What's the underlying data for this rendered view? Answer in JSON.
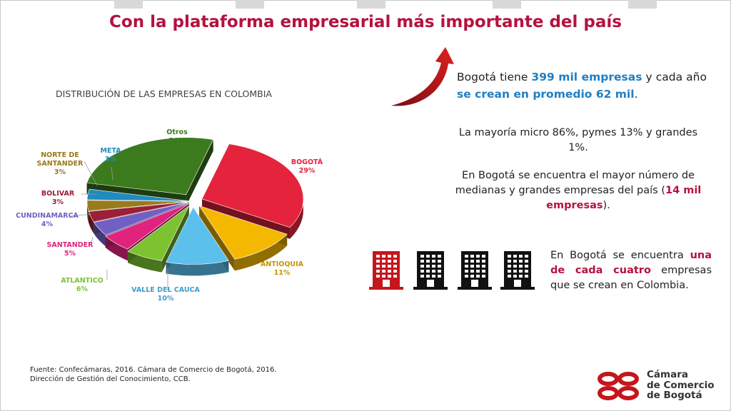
{
  "title": "Con la plataforma empresarial más importante del país",
  "chart_data": {
    "type": "pie",
    "title": "DISTRIBUCIÓN DE LAS EMPRESAS EN COLOMBIA",
    "slices": [
      {
        "name": "BOGOTÁ",
        "value": 29,
        "label": "29%",
        "color": "#e5233d"
      },
      {
        "name": "ANTIOQUIA",
        "value": 11,
        "label": "11%",
        "color": "#f4b800"
      },
      {
        "name": "VALLE DEL CAUCA",
        "value": 10,
        "label": "10%",
        "color": "#5bc0ec"
      },
      {
        "name": "ATLANTICO",
        "value": 6,
        "label": "6%",
        "color": "#7dc331"
      },
      {
        "name": "SANTANDER",
        "value": 5,
        "label": "5%",
        "color": "#e0247e"
      },
      {
        "name": "CUNDINAMARCA",
        "value": 4,
        "label": "4%",
        "color": "#7060c4"
      },
      {
        "name": "BOLIVAR",
        "value": 3,
        "label": "3%",
        "color": "#9b1f36"
      },
      {
        "name": "NORTE DE SANTANDER",
        "value": 3,
        "label": "3%",
        "color": "#9a7a1a"
      },
      {
        "name": "META",
        "value": 3,
        "label": "3%",
        "color": "#1f8bbf"
      },
      {
        "name": "Otros",
        "value": 26,
        "label": "26%",
        "color": "#3c7a1e"
      }
    ]
  },
  "text": {
    "p1_a": "Bogotá tiene ",
    "p1_b": "399 mil empresas",
    "p1_c": " y cada año ",
    "p1_d": "se crean en promedio 62 mil",
    "p1_e": ".",
    "p2": "La mayoría micro 86%, pymes 13% y grandes 1%.",
    "p3_a": "En Bogotá se encuentra el mayor número de medianas y grandes empresas  del país (",
    "p3_b": "14 mil empresas",
    "p3_c": ").",
    "p4_a": "En Bogotá se encuentra ",
    "p4_b": "una de cada cuatro",
    "p4_c": " empresas que se crean en Colombia."
  },
  "buildings": [
    {
      "icon": "building-icon",
      "color": "#c4161c"
    },
    {
      "icon": "building-icon",
      "color": "#111111"
    },
    {
      "icon": "building-icon",
      "color": "#111111"
    },
    {
      "icon": "building-icon",
      "color": "#111111"
    }
  ],
  "source": {
    "line1": "Fuente: Confecámaras, 2016. Cámara de Comercio de Bogotá, 2016.",
    "line2": "Dirección de Gestión del Conocimiento, CCB."
  },
  "logo": {
    "line1": "Cámara",
    "line2": "de Comercio",
    "line3": "de Bogotá",
    "color": "#c4161c"
  }
}
